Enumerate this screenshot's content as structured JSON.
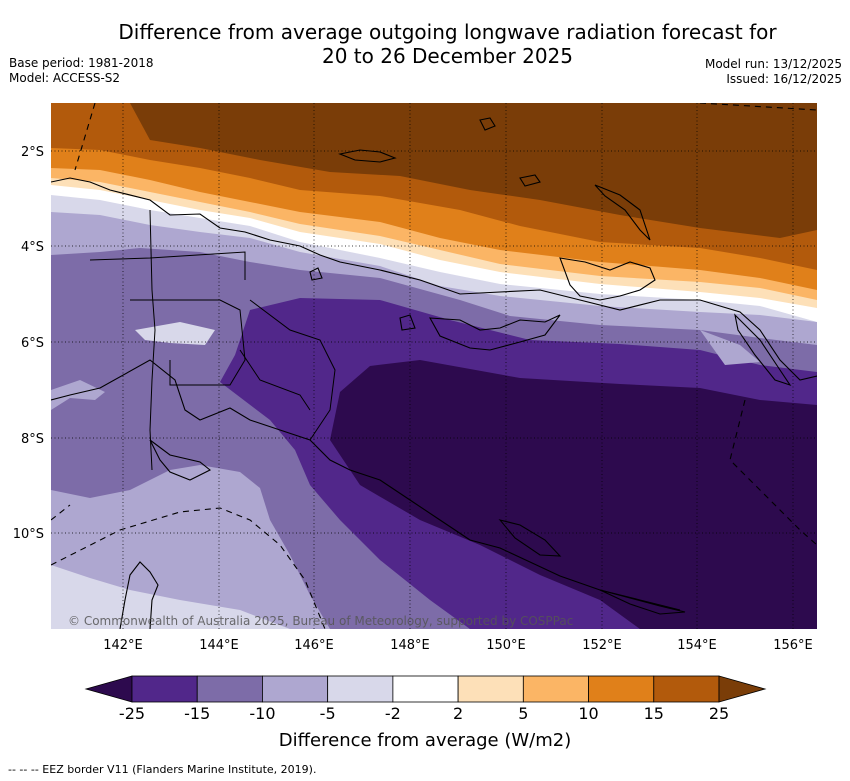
{
  "title_line1": "Difference from average outgoing longwave radiation forecast for",
  "title_line2": "20 to 26 December 2025",
  "base_period": "Base period: 1981-2018",
  "model": "Model: ACCESS-S2",
  "model_run": "Model run: 13/12/2025",
  "issued": "Issued: 16/12/2025",
  "lat_labels": [
    "2°S",
    "4°S",
    "6°S",
    "8°S",
    "10°S"
  ],
  "lon_labels": [
    "142°E",
    "144°E",
    "146°E",
    "148°E",
    "150°E",
    "152°E",
    "154°E",
    "156°E"
  ],
  "copyright": "© Commonwealth of Australia 2025, Bureau of Meteorology, supported by COSPPac",
  "colorbar": {
    "label": "Difference from average (W/m2)",
    "ticks": [
      "-25",
      "-15",
      "-10",
      "-5",
      "-2",
      "2",
      "5",
      "10",
      "15",
      "25"
    ],
    "colors": [
      "#2d0a4e",
      "#51278a",
      "#7d6ca8",
      "#aea7d0",
      "#d8d8ea",
      "#ffffff",
      "#fde0b8",
      "#fbb565",
      "#e0801a",
      "#b25a0c",
      "#7a3d08"
    ]
  },
  "footer": "--  --  -- EEZ border V11 (Flanders Marine Institute, 2019)."
}
